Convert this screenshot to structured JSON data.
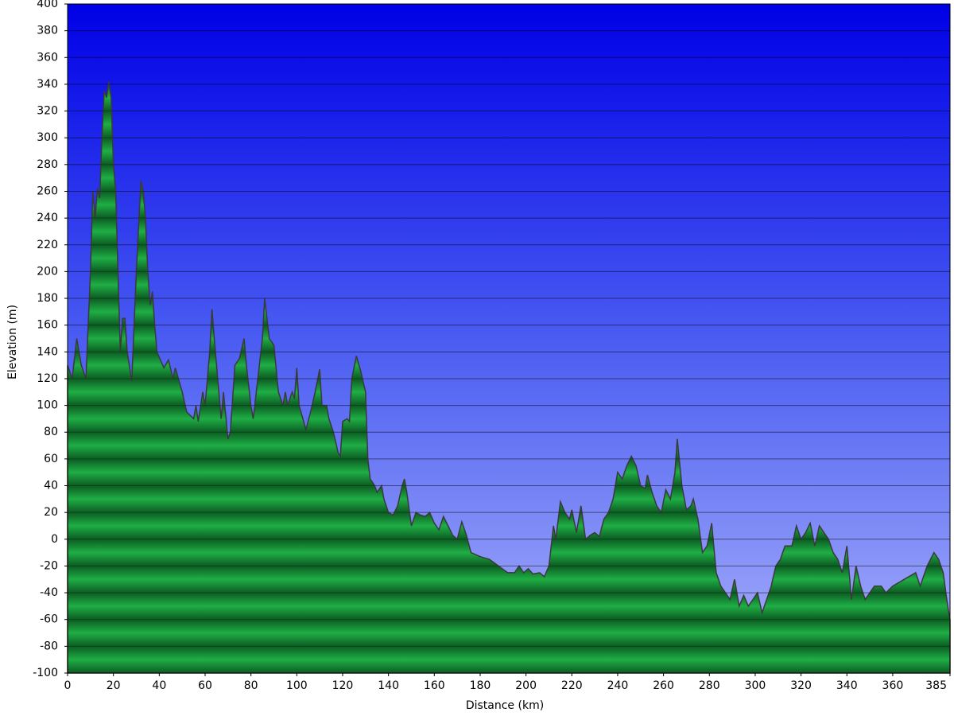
{
  "chart_data": {
    "type": "area",
    "xlabel": "Distance   (km)",
    "ylabel": "Elevation (m)",
    "xlim": [
      0,
      385
    ],
    "ylim": [
      -100,
      400
    ],
    "xticks": [
      0,
      20,
      40,
      60,
      80,
      100,
      120,
      140,
      160,
      180,
      200,
      220,
      240,
      260,
      280,
      300,
      320,
      340,
      360,
      385
    ],
    "yticks": [
      -100,
      -80,
      -60,
      -40,
      -20,
      0,
      20,
      40,
      60,
      80,
      100,
      120,
      140,
      160,
      180,
      200,
      220,
      240,
      260,
      280,
      300,
      320,
      340,
      360,
      380,
      400
    ],
    "grid": true,
    "color": "#1ca23f",
    "x": [
      0,
      2,
      4,
      6,
      8,
      10,
      11,
      12,
      13,
      14,
      15,
      16,
      17,
      18,
      19,
      20,
      21,
      22,
      23,
      24,
      25,
      26,
      28,
      30,
      32,
      33,
      34,
      35,
      36,
      37,
      38,
      39,
      42,
      44,
      46,
      47,
      50,
      52,
      55,
      56,
      57,
      59,
      60,
      62,
      63,
      64,
      66,
      67,
      68,
      70,
      71,
      73,
      75,
      77,
      78,
      80,
      81,
      83,
      85,
      86,
      87,
      88,
      90,
      92,
      94,
      95,
      96,
      98,
      99,
      100,
      101,
      104,
      106,
      108,
      110,
      111,
      113,
      114,
      116,
      118,
      119,
      120,
      122,
      123,
      124,
      126,
      128,
      130,
      131,
      132,
      134,
      135,
      137,
      138,
      140,
      142,
      144,
      146,
      147,
      148,
      150,
      152,
      154,
      156,
      158,
      160,
      162,
      164,
      166,
      168,
      170,
      172,
      174,
      176,
      180,
      184,
      188,
      192,
      195,
      197,
      199,
      201,
      203,
      206,
      208,
      210,
      212,
      213,
      215,
      217,
      219,
      220,
      222,
      224,
      226,
      228,
      230,
      232,
      234,
      236,
      238,
      240,
      242,
      244,
      246,
      248,
      250,
      252,
      253,
      255,
      257,
      259,
      261,
      263,
      265,
      266,
      268,
      270,
      272,
      273,
      275,
      277,
      279,
      281,
      283,
      285,
      287,
      289,
      291,
      293,
      295,
      297,
      299,
      301,
      303,
      305,
      307,
      309,
      311,
      313,
      316,
      318,
      320,
      322,
      324,
      326,
      328,
      330,
      332,
      334,
      336,
      338,
      340,
      342,
      344,
      346,
      348,
      350,
      352,
      355,
      357,
      360,
      365,
      370,
      372,
      375,
      378,
      380,
      382,
      384,
      385
    ],
    "values": [
      130,
      120,
      150,
      130,
      120,
      200,
      260,
      240,
      262,
      255,
      300,
      335,
      330,
      342,
      330,
      280,
      260,
      200,
      140,
      165,
      165,
      140,
      118,
      200,
      268,
      260,
      240,
      200,
      175,
      185,
      160,
      140,
      128,
      134,
      120,
      128,
      110,
      95,
      90,
      100,
      88,
      110,
      100,
      140,
      172,
      150,
      110,
      90,
      110,
      75,
      80,
      130,
      135,
      150,
      130,
      100,
      90,
      120,
      150,
      180,
      165,
      150,
      145,
      110,
      100,
      110,
      100,
      110,
      105,
      128,
      100,
      82,
      95,
      110,
      127,
      100,
      100,
      90,
      80,
      65,
      62,
      88,
      90,
      88,
      120,
      137,
      125,
      110,
      60,
      45,
      40,
      35,
      40,
      30,
      20,
      18,
      25,
      40,
      45,
      35,
      10,
      20,
      18,
      17,
      20,
      12,
      7,
      17,
      10,
      3,
      0,
      13,
      3,
      -10,
      -13,
      -15,
      -20,
      -25,
      -25,
      -20,
      -25,
      -22,
      -26,
      -25,
      -28,
      -20,
      10,
      0,
      28,
      20,
      15,
      22,
      5,
      25,
      0,
      3,
      5,
      2,
      15,
      20,
      30,
      50,
      45,
      55,
      62,
      55,
      40,
      38,
      48,
      35,
      25,
      20,
      37,
      30,
      50,
      75,
      40,
      22,
      25,
      30,
      15,
      -10,
      -5,
      12,
      -25,
      -35,
      -40,
      -45,
      -30,
      -50,
      -42,
      -50,
      -45,
      -40,
      -55,
      -45,
      -35,
      -20,
      -15,
      -5,
      -5,
      10,
      0,
      5,
      12,
      -5,
      10,
      5,
      0,
      -10,
      -15,
      -25,
      -5,
      -45,
      -20,
      -35,
      -45,
      -40,
      -35,
      -35,
      -40,
      -35,
      -30,
      -25,
      -35,
      -20,
      -10,
      -15,
      -25,
      -50,
      -60
    ]
  }
}
